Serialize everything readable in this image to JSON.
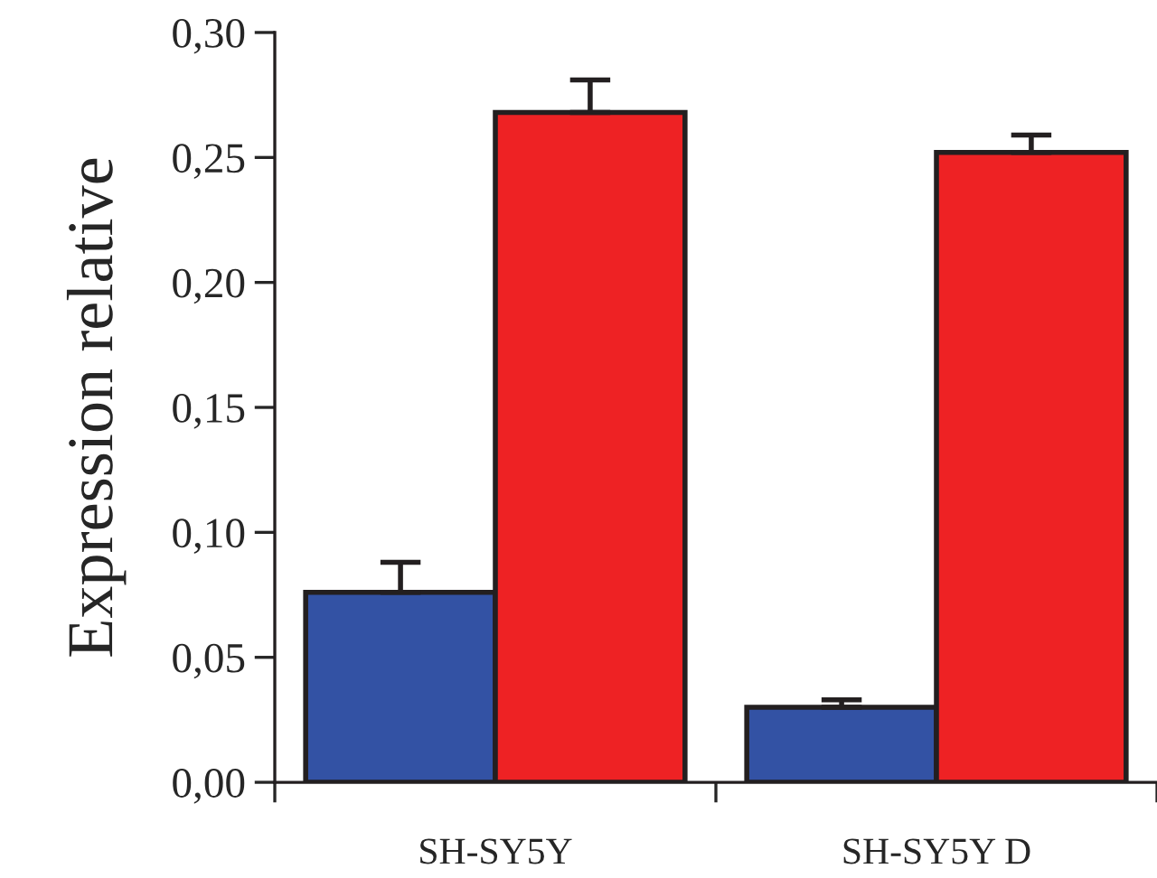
{
  "chart_data": {
    "type": "bar",
    "ylabel": "Expression relative",
    "categories": [
      "SH-SY5Y",
      "SH-SY5Y D"
    ],
    "series": [
      {
        "color": "#3352a4",
        "values": [
          0.076,
          0.03
        ],
        "errors": [
          0.012,
          0.003
        ]
      },
      {
        "color": "#ee2224",
        "values": [
          0.268,
          0.252
        ],
        "errors": [
          0.013,
          0.007
        ]
      }
    ],
    "ylim": [
      0,
      0.3
    ],
    "yticks": [
      {
        "value": 0,
        "label": "0,00"
      },
      {
        "value": 0.05,
        "label": "0,05"
      },
      {
        "value": 0.1,
        "label": "0,10"
      },
      {
        "value": 0.15,
        "label": "0,15"
      },
      {
        "value": 0.2,
        "label": "0,20"
      },
      {
        "value": 0.25,
        "label": "0,25"
      },
      {
        "value": 0.3,
        "label": "0,30"
      }
    ],
    "grid": false,
    "legend": false
  }
}
